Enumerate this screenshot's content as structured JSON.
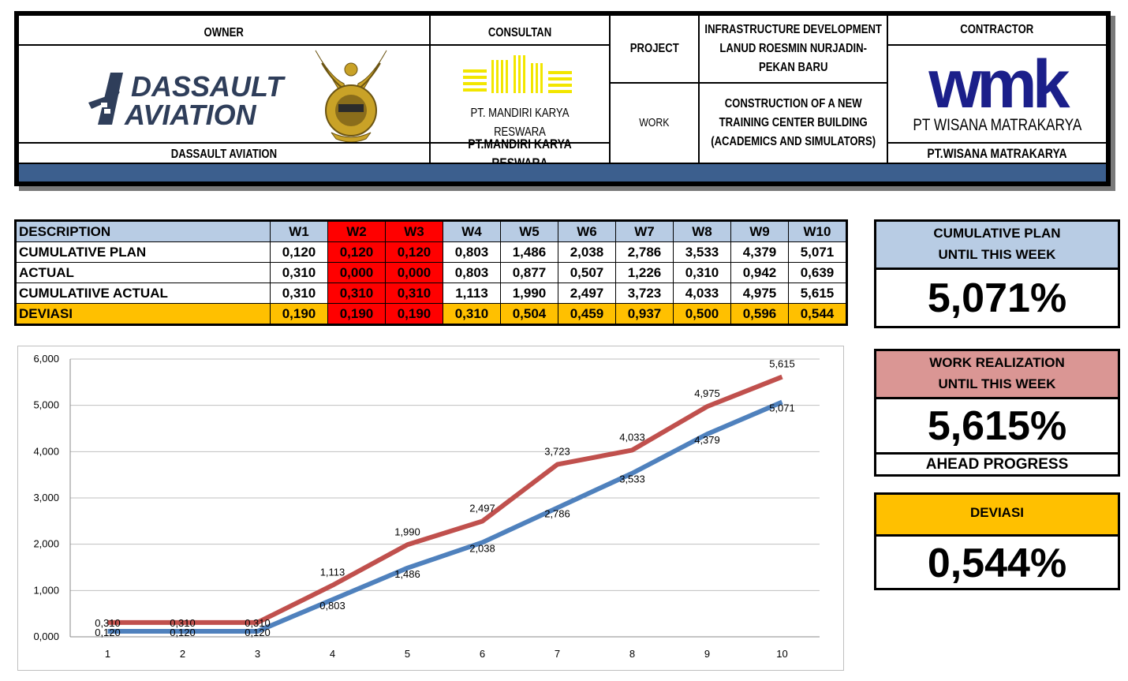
{
  "header": {
    "owner_label": "OWNER",
    "owner_logo_text": "DASSAULT\nAVIATION",
    "owner_name": "DASSAULT AVIATION",
    "consultant_label": "CONSULTAN",
    "consultant_logo_text": "PT. MANDIRI KARYA RESWARA",
    "consultant_name": "PT.MANDIRI KARYA RESWARA",
    "project_label": "PROJECT",
    "project_value": "INFRASTRUCTURE DEVELOPMENT LANUD ROESMIN NURJADIN-PEKAN BARU",
    "work_label": "WORK",
    "work_value": "CONSTRUCTION OF A NEW TRAINING CENTER BUILDING (ACADEMICS AND SIMULATORS)",
    "contractor_label": "CONTRACTOR",
    "contractor_logo_text": "wmk",
    "contractor_logo_sub": "PT WISANA MATRAKARYA",
    "contractor_name": "PT.WISANA MATRAKARYA"
  },
  "table": {
    "columns": [
      "DESCRIPTION",
      "W1",
      "W2",
      "W3",
      "W4",
      "W5",
      "W6",
      "W7",
      "W8",
      "W9",
      "W10"
    ],
    "rows": [
      {
        "label": "CUMULATIVE PLAN",
        "values": [
          "0,120",
          "0,120",
          "0,120",
          "0,803",
          "1,486",
          "2,038",
          "2,786",
          "3,533",
          "4,379",
          "5,071"
        ]
      },
      {
        "label": "ACTUAL",
        "values": [
          "0,310",
          "0,000",
          "0,000",
          "0,803",
          "0,877",
          "0,507",
          "1,226",
          "0,310",
          "0,942",
          "0,639"
        ]
      },
      {
        "label": "CUMULATIIVE ACTUAL",
        "values": [
          "0,310",
          "0,310",
          "0,310",
          "1,113",
          "1,990",
          "2,497",
          "3,723",
          "4,033",
          "4,975",
          "5,615"
        ]
      },
      {
        "label": "DEVIASI",
        "values": [
          "0,190",
          "0,190",
          "0,190",
          "0,310",
          "0,504",
          "0,459",
          "0,937",
          "0,500",
          "0,596",
          "0,544"
        ]
      }
    ],
    "colors": {
      "header": "#b8cce4",
      "highlight": "#ff0000",
      "deviation": "#ffc000"
    }
  },
  "summary": {
    "plan_label_1": "CUMULATIVE PLAN",
    "plan_label_2": "UNTIL THIS WEEK",
    "plan_value": "5,071%",
    "real_label_1": "WORK REALIZATION",
    "real_label_2": "UNTIL THIS WEEK",
    "real_value": "5,615%",
    "real_status": "AHEAD PROGRESS",
    "dev_label": "DEVIASI",
    "dev_value": "0,544%",
    "colors": {
      "plan": "#b8cce4",
      "real": "#da9694",
      "dev": "#ffc000"
    }
  },
  "chart_data": {
    "type": "line",
    "x": [
      1,
      2,
      3,
      4,
      5,
      6,
      7,
      8,
      9,
      10
    ],
    "ylim": [
      0,
      6
    ],
    "yticks": [
      "0,000",
      "1,000",
      "2,000",
      "3,000",
      "4,000",
      "5,000",
      "6,000"
    ],
    "grid": true,
    "series": [
      {
        "values": [
          0.31,
          0.31,
          0.31,
          1.113,
          1.99,
          2.497,
          3.723,
          4.033,
          4.975,
          5.615
        ],
        "labels": [
          "0,310",
          "0,310",
          "0,310",
          "1,113",
          "1,990",
          "2,497",
          "3,723",
          "4,033",
          "4,975",
          "5,615"
        ],
        "color": "#c0504d"
      },
      {
        "values": [
          0.12,
          0.12,
          0.12,
          0.803,
          1.486,
          2.038,
          2.786,
          3.533,
          4.379,
          5.071
        ],
        "labels": [
          "0,120",
          "0,120",
          "0,120",
          "0,803",
          "1,486",
          "2,038",
          "2,786",
          "3,533",
          "4,379",
          "5,071"
        ],
        "color": "#4f81bd"
      }
    ]
  }
}
